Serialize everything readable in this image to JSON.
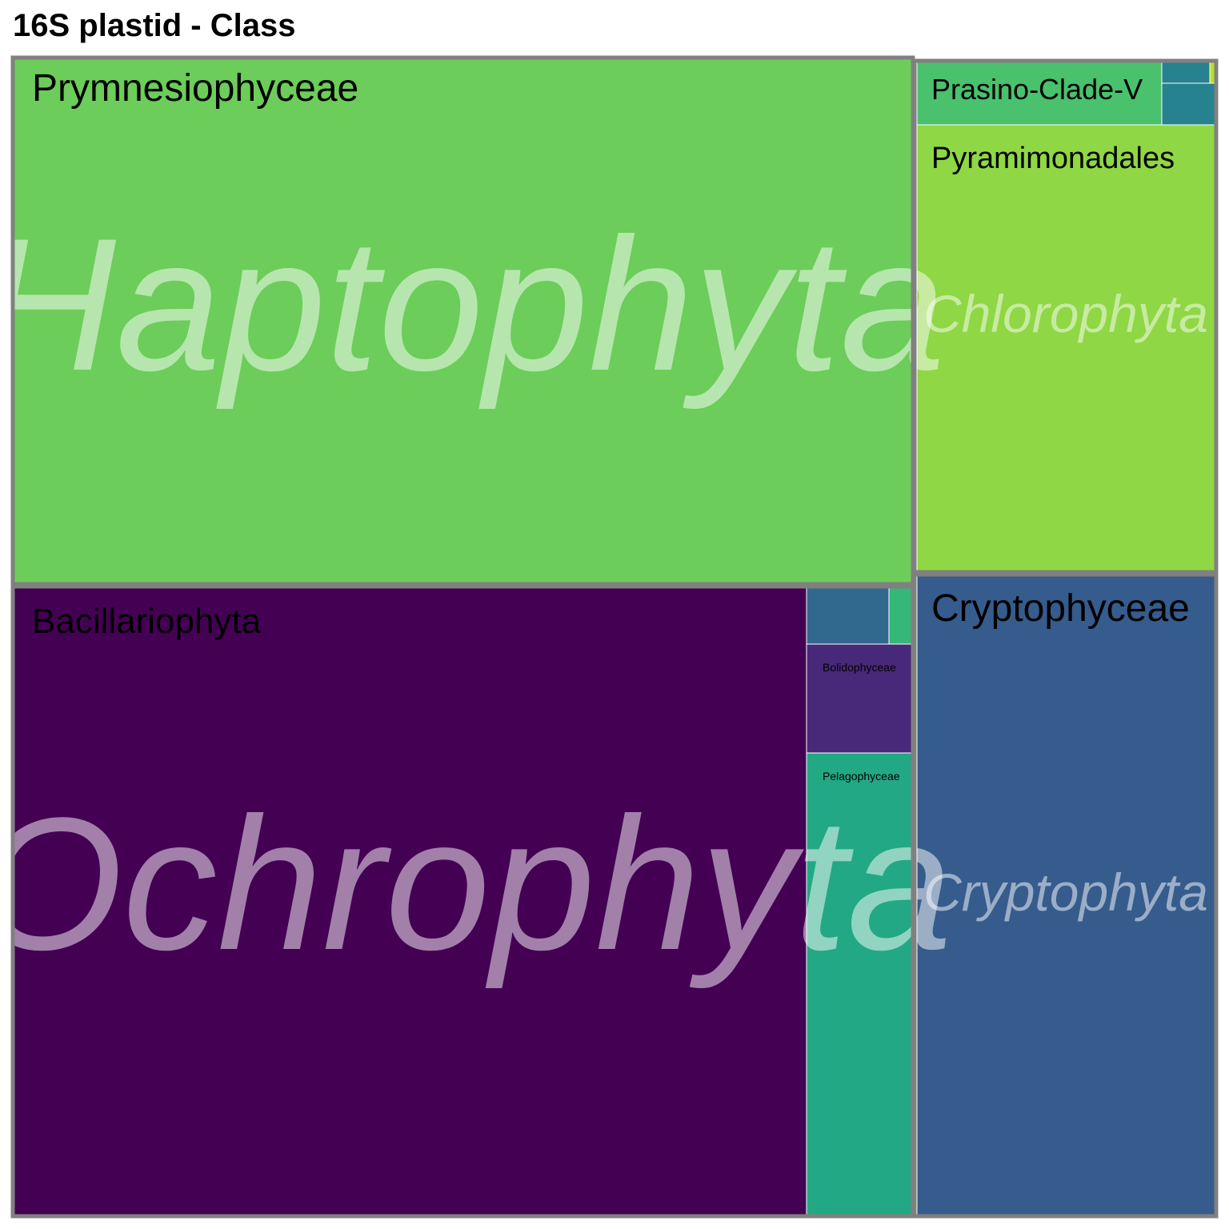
{
  "chart_data": {
    "type": "treemap",
    "title": "16S plastid - Class",
    "groups": [
      {
        "name": "Haptophyta",
        "color": "#6ccd5a",
        "classes": [
          {
            "name": "Prymnesiophyceae",
            "color": "#6ccd5a"
          }
        ]
      },
      {
        "name": "Ochrophyta",
        "color": "#440154",
        "classes": [
          {
            "name": "Bacillariophyta",
            "color": "#440154"
          },
          {
            "name": "",
            "color": "#31688e"
          },
          {
            "name": "",
            "color": "#35b779"
          },
          {
            "name": "Bolidophyceae",
            "color": "#482878"
          },
          {
            "name": "Pelagophyceae",
            "color": "#22a884"
          }
        ]
      },
      {
        "name": "Chlorophyta",
        "color": "#8fd744",
        "classes": [
          {
            "name": "Prasino-Clade-V",
            "color": "#4ac16d"
          },
          {
            "name": "",
            "color": "#26828e"
          },
          {
            "name": "",
            "color": "#26828e"
          },
          {
            "name": "",
            "color": "#bddf26"
          },
          {
            "name": "Pyramimonadales",
            "color": "#8fd744"
          }
        ]
      },
      {
        "name": "Cryptophyta",
        "color": "#365c8d",
        "classes": [
          {
            "name": "Cryptophyceae",
            "color": "#365c8d"
          }
        ]
      }
    ]
  }
}
